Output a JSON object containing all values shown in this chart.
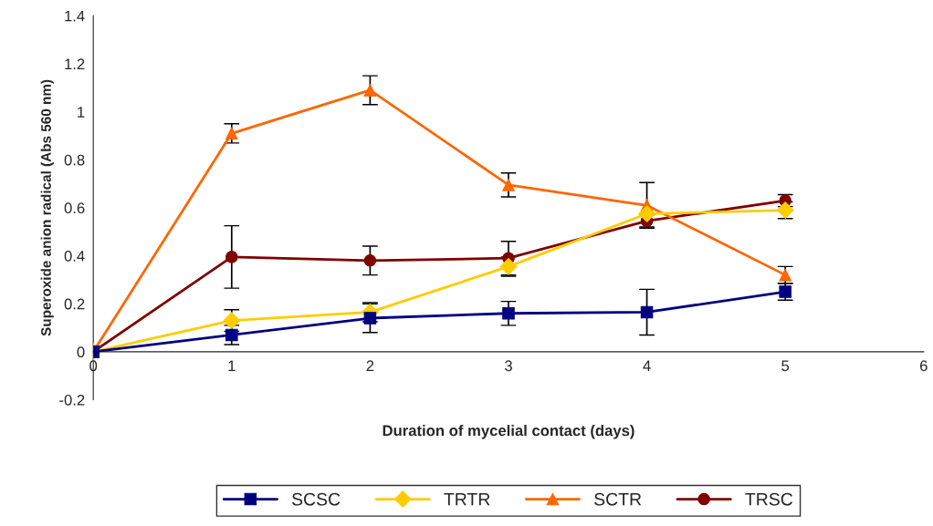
{
  "chart_data": {
    "type": "line",
    "xlabel": "Duration of mycelial contact (days)",
    "ylabel": "Superoxide anion radical (Abs 560 nm)",
    "x": [
      0,
      1,
      2,
      3,
      4,
      5
    ],
    "series": [
      {
        "name": "SCSC",
        "color": "#000080",
        "marker": "square",
        "values": [
          0,
          0.07,
          0.14,
          0.16,
          0.165,
          0.25
        ],
        "errors": [
          null,
          0.04,
          0.06,
          0.05,
          0.095,
          0.035
        ]
      },
      {
        "name": "TRTR",
        "color": "#ffcc00",
        "marker": "diamond",
        "values": [
          0,
          0.13,
          0.165,
          0.355,
          0.575,
          0.59
        ],
        "errors": [
          null,
          0.045,
          0.04,
          0.04,
          null,
          0.035
        ]
      },
      {
        "name": "SCTR",
        "color": "#ff6600",
        "marker": "triangle",
        "values": [
          0,
          0.91,
          1.09,
          0.695,
          0.61,
          0.32
        ],
        "errors": [
          null,
          0.04,
          0.06,
          0.05,
          0.095,
          0.035
        ]
      },
      {
        "name": "TRSC",
        "color": "#800000",
        "marker": "circle",
        "values": [
          0,
          0.395,
          0.38,
          0.39,
          0.545,
          0.63
        ],
        "errors": [
          null,
          0.13,
          0.06,
          0.07,
          0.025,
          0.025
        ]
      }
    ],
    "xlim": [
      0,
      6
    ],
    "xticks": [
      0,
      1,
      2,
      3,
      4,
      5,
      6
    ],
    "ylim": [
      -0.2,
      1.4
    ],
    "yticks": [
      {
        "value": -0.2,
        "label": "-0.2"
      },
      0,
      0.2,
      0.4,
      0.6,
      0.8,
      1,
      1.2,
      1.4
    ],
    "grid": false,
    "legend": "bottom"
  }
}
